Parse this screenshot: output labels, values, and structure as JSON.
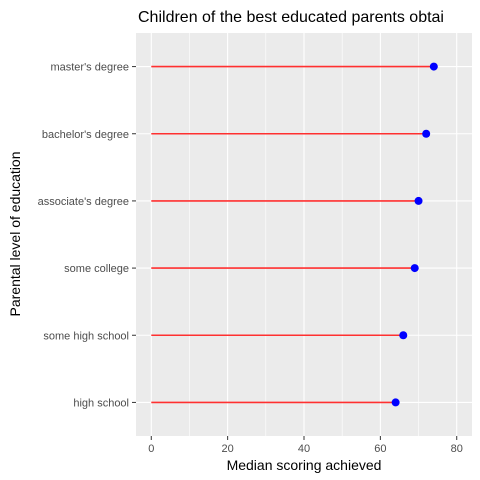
{
  "chart_data": {
    "type": "lollipop",
    "orientation": "horizontal",
    "title": "Children of the best educated parents obtai",
    "xlabel": "Median scoring achieved",
    "ylabel": "Parental level of education",
    "xlim": [
      -4,
      84
    ],
    "x_ticks": [
      0,
      20,
      40,
      60,
      80
    ],
    "categories": [
      "master's degree",
      "bachelor's degree",
      "associate's degree",
      "some college",
      "some high school",
      "high school"
    ],
    "values": [
      74,
      72,
      70,
      69,
      66,
      64
    ],
    "grid": true,
    "colors": {
      "panel": "#ebebeb",
      "grid": "#ffffff",
      "stem": "#ff3030",
      "point": "#0000ff"
    }
  }
}
